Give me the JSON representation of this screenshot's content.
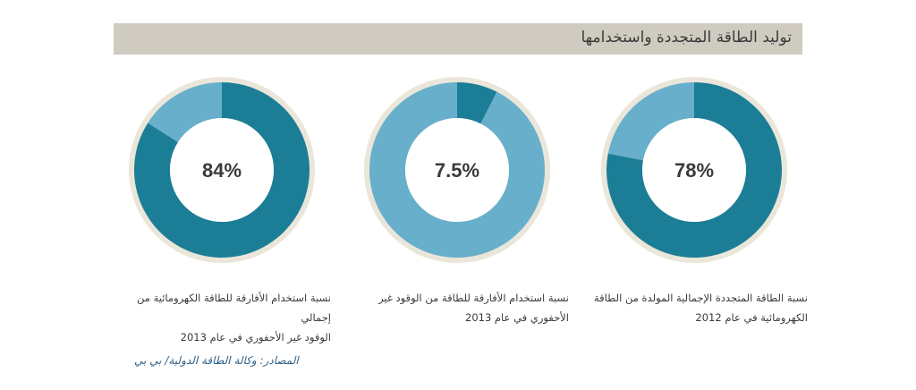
{
  "header": {
    "title": "توليد الطاقة المتجددة واستخدامها"
  },
  "chart_data": [
    {
      "type": "pie",
      "value_percent": 78,
      "label": "78%",
      "caption": [
        "نسبة الطاقة المتجددة الإجمالية المولدة من الطاقة",
        "الكهرومائية في عام 2012"
      ]
    },
    {
      "type": "pie",
      "value_percent": 7.5,
      "label": "7.5%",
      "caption": [
        "نسبة استخدام الأفارقة للطاقة من الوقود غير",
        "الأحفوري في عام 2013"
      ]
    },
    {
      "type": "pie",
      "value_percent": 84,
      "label": "84%",
      "caption": [
        "نسبة استخدام الأفارقة للطاقة الكهرومائية من إجمالي",
        "الوقود غير الأحفوري في عام 2013"
      ]
    }
  ],
  "colors": {
    "primary": "#1c7e96",
    "secondary": "#67afcb",
    "ring": "#ebe6da",
    "header_bg": "#cfcbc0",
    "source_text": "#2e5f86"
  },
  "source": "المصادر: وكالة الطاقة الدولية/ بي بي"
}
